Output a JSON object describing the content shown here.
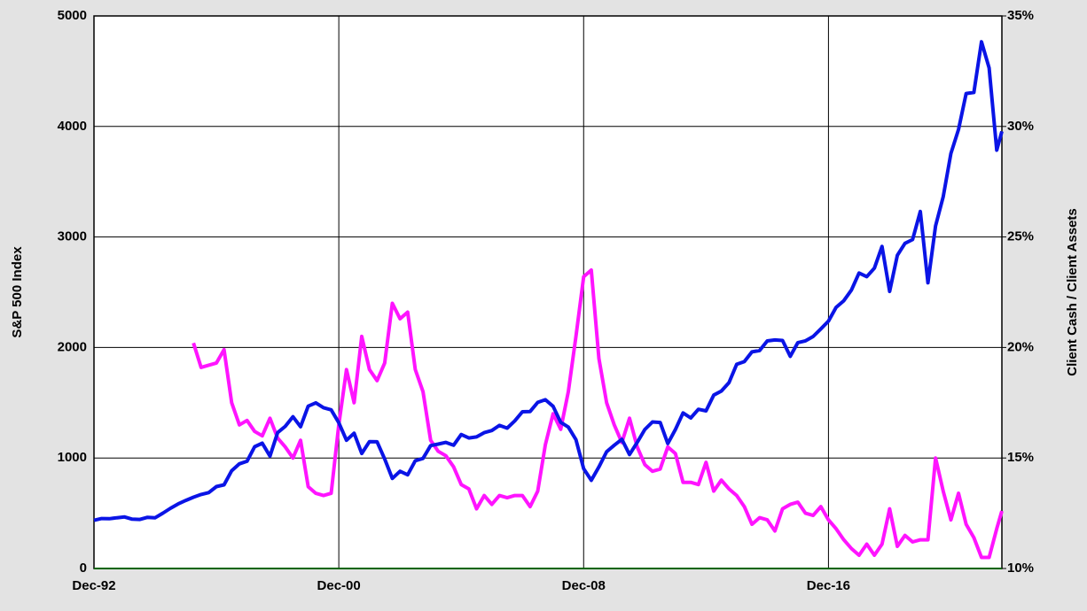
{
  "chart_data": {
    "type": "line",
    "x": [
      "1992-12",
      "1993-03",
      "1993-06",
      "1993-09",
      "1993-12",
      "1994-03",
      "1994-06",
      "1994-09",
      "1994-12",
      "1995-03",
      "1995-06",
      "1995-09",
      "1995-12",
      "1996-03",
      "1996-06",
      "1996-09",
      "1996-12",
      "1997-03",
      "1997-06",
      "1997-09",
      "1997-12",
      "1998-03",
      "1998-06",
      "1998-09",
      "1998-12",
      "1999-03",
      "1999-06",
      "1999-09",
      "1999-12",
      "2000-03",
      "2000-06",
      "2000-09",
      "2000-12",
      "2001-03",
      "2001-06",
      "2001-09",
      "2001-12",
      "2002-03",
      "2002-06",
      "2002-09",
      "2002-12",
      "2003-03",
      "2003-06",
      "2003-09",
      "2003-12",
      "2004-03",
      "2004-06",
      "2004-09",
      "2004-12",
      "2005-03",
      "2005-06",
      "2005-09",
      "2005-12",
      "2006-03",
      "2006-06",
      "2006-09",
      "2006-12",
      "2007-03",
      "2007-06",
      "2007-09",
      "2007-12",
      "2008-03",
      "2008-06",
      "2008-09",
      "2008-12",
      "2009-03",
      "2009-06",
      "2009-09",
      "2009-12",
      "2010-03",
      "2010-06",
      "2010-09",
      "2010-12",
      "2011-03",
      "2011-06",
      "2011-09",
      "2011-12",
      "2012-03",
      "2012-06",
      "2012-09",
      "2012-12",
      "2013-03",
      "2013-06",
      "2013-09",
      "2013-12",
      "2014-03",
      "2014-06",
      "2014-09",
      "2014-12",
      "2015-03",
      "2015-06",
      "2015-09",
      "2015-12",
      "2016-03",
      "2016-06",
      "2016-09",
      "2016-12",
      "2017-03",
      "2017-06",
      "2017-09",
      "2017-12",
      "2018-03",
      "2018-06",
      "2018-09",
      "2018-12",
      "2019-03",
      "2019-06",
      "2019-09",
      "2019-12",
      "2020-03",
      "2020-06",
      "2020-09",
      "2020-12",
      "2021-03",
      "2021-06",
      "2021-09",
      "2021-12",
      "2022-03",
      "2022-06",
      "2022-08"
    ],
    "xlim": [
      "1992-12",
      "2022-08"
    ],
    "xticks": [
      {
        "value": "1992-12",
        "label": "Dec-92"
      },
      {
        "value": "2000-12",
        "label": "Dec-00"
      },
      {
        "value": "2008-12",
        "label": "Dec-08"
      },
      {
        "value": "2016-12",
        "label": "Dec-16"
      }
    ],
    "ylabel": "S&P 500 Index",
    "ylim": [
      0,
      5000
    ],
    "yticks": [
      0,
      1000,
      2000,
      3000,
      4000,
      5000
    ],
    "y2label": "Client Cash / Client Assets",
    "y2lim": [
      10,
      35
    ],
    "y2ticks": [
      {
        "value": 10,
        "label": "10%"
      },
      {
        "value": 15,
        "label": "15%"
      },
      {
        "value": 20,
        "label": "20%"
      },
      {
        "value": 25,
        "label": "25%"
      },
      {
        "value": 30,
        "label": "30%"
      },
      {
        "value": 35,
        "label": "35%"
      }
    ],
    "grid": true,
    "series": [
      {
        "color": "#0a14e6",
        "values": [
          436,
          452,
          450,
          459,
          466,
          446,
          444,
          463,
          459,
          501,
          545,
          584,
          616,
          645,
          670,
          687,
          741,
          757,
          885,
          947,
          970,
          1102,
          1134,
          1017,
          1229,
          1286,
          1373,
          1283,
          1469,
          1499,
          1455,
          1436,
          1320,
          1160,
          1224,
          1041,
          1148,
          1147,
          990,
          815,
          880,
          848,
          975,
          996,
          1112,
          1126,
          1141,
          1115,
          1212,
          1181,
          1191,
          1229,
          1248,
          1295,
          1270,
          1336,
          1418,
          1421,
          1503,
          1527,
          1468,
          1323,
          1280,
          1166,
          903,
          798,
          919,
          1057,
          1115,
          1169,
          1031,
          1141,
          1258,
          1326,
          1321,
          1131,
          1258,
          1408,
          1362,
          1441,
          1426,
          1569,
          1606,
          1682,
          1848,
          1872,
          1960,
          1972,
          2059,
          2068,
          2063,
          1920,
          2044,
          2060,
          2099,
          2168,
          2239,
          2363,
          2423,
          2519,
          2674,
          2641,
          2718,
          2914,
          2507,
          2834,
          2942,
          2977,
          3231,
          2585,
          3100,
          3363,
          3756,
          3973,
          4298,
          4308,
          4766,
          4530,
          3785,
          3955
        ]
      },
      {
        "color": "#ff14ff",
        "axis": "y2",
        "values": [
          null,
          null,
          null,
          null,
          null,
          null,
          null,
          null,
          null,
          null,
          null,
          null,
          null,
          20.2,
          19.1,
          19.2,
          19.3,
          19.9,
          17.5,
          16.5,
          16.7,
          16.2,
          16.0,
          16.8,
          15.9,
          15.5,
          15.0,
          15.8,
          13.7,
          13.4,
          13.3,
          13.4,
          16.5,
          19.0,
          17.5,
          20.5,
          19.0,
          18.5,
          19.3,
          22.0,
          21.3,
          21.6,
          19.0,
          18.0,
          15.8,
          15.3,
          15.1,
          14.6,
          13.8,
          13.6,
          12.7,
          13.3,
          12.9,
          13.3,
          13.2,
          13.3,
          13.3,
          12.8,
          13.5,
          15.6,
          17.0,
          16.3,
          18.0,
          20.5,
          23.2,
          23.5,
          19.5,
          17.5,
          16.5,
          15.7,
          16.8,
          15.5,
          14.7,
          14.4,
          14.5,
          15.5,
          15.2,
          13.9,
          13.9,
          13.8,
          14.8,
          13.5,
          14.0,
          13.6,
          13.3,
          12.8,
          12.0,
          12.3,
          12.2,
          11.7,
          12.7,
          12.9,
          13.0,
          12.5,
          12.4,
          12.8,
          12.2,
          11.8,
          11.3,
          10.9,
          10.6,
          11.1,
          10.6,
          11.1,
          12.7,
          11.0,
          11.5,
          11.2,
          11.3,
          11.3,
          15.0,
          13.5,
          12.2,
          13.4,
          12.0,
          11.4,
          10.5,
          10.5,
          11.8,
          12.6
        ]
      }
    ]
  }
}
